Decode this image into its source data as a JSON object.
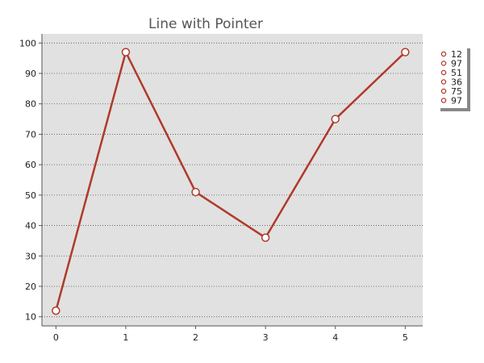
{
  "chart_data": {
    "type": "line",
    "title": "Line with Pointer",
    "xlabel": "",
    "ylabel": "",
    "x": [
      0,
      1,
      2,
      3,
      4,
      5
    ],
    "x_ticks": [
      "0",
      "1",
      "2",
      "3",
      "4",
      "5"
    ],
    "y_ticks": [
      "10",
      "20",
      "30",
      "40",
      "50",
      "60",
      "70",
      "80",
      "90",
      "100"
    ],
    "xlim": [
      -0.2,
      5.25
    ],
    "ylim": [
      7,
      103
    ],
    "series": [
      {
        "values": [
          12,
          97,
          51,
          36,
          75,
          97
        ]
      }
    ],
    "legend": {
      "placement": "top-right",
      "entries": [
        "12",
        "97",
        "51",
        "36",
        "75",
        "97"
      ]
    },
    "grid": "horizontal-dotted",
    "colors": {
      "plot_background": "#e1e1e1",
      "line": "#b03a2a",
      "marker_fill": "#ffffff",
      "grid": "#555555"
    }
  }
}
